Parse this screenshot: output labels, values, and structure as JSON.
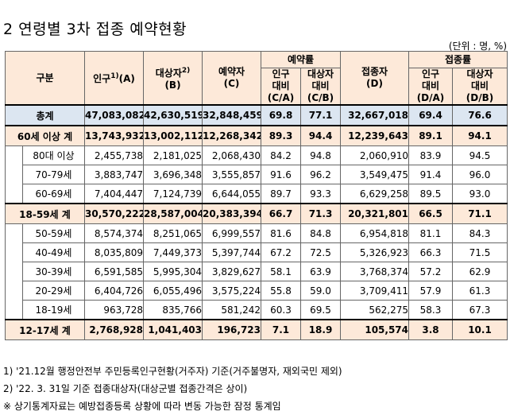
{
  "title": "2  연령별 3차 접종 예약현황",
  "unit": "(단위 : 명, %)",
  "headers": {
    "category": "구분",
    "population": "인구",
    "population_sup": "1)",
    "population_suffix": "(A)",
    "target": "대상자",
    "target_sup": "2)",
    "target_suffix": "(B)",
    "reserved": "예약자",
    "reserved_suffix": "(C)",
    "reservation_rate": "예약률",
    "vs_pop_line1": "인구",
    "vs_pop_line2": "대비",
    "vs_pop_ca": "(C/A)",
    "vs_target_line1": "대상자",
    "vs_target_line2": "대비",
    "vs_target_cb": "(C/B)",
    "vaccinated": "접종자",
    "vaccinated_suffix": "(D)",
    "vaccination_rate": "접종률",
    "vs_pop_da": "(D/A)",
    "vs_target_db": "(D/B)"
  },
  "rows": [
    {
      "label": "총계",
      "a": "47,083,082",
      "b": "42,630,519",
      "c": "32,848,459",
      "ca": "69.8",
      "cb": "77.1",
      "d": "32,667,018",
      "da": "69.4",
      "db": "76.6"
    },
    {
      "label": "60세 이상 계",
      "a": "13,743,932",
      "b": "13,002,112",
      "c": "12,268,342",
      "ca": "89.3",
      "cb": "94.4",
      "d": "12,239,643",
      "da": "89.1",
      "db": "94.1"
    },
    {
      "label": "80대 이상",
      "a": "2,455,738",
      "b": "2,181,025",
      "c": "2,068,430",
      "ca": "84.2",
      "cb": "94.8",
      "d": "2,060,910",
      "da": "83.9",
      "db": "94.5"
    },
    {
      "label": "70-79세",
      "a": "3,883,747",
      "b": "3,696,348",
      "c": "3,555,857",
      "ca": "91.6",
      "cb": "96.2",
      "d": "3,549,475",
      "da": "91.4",
      "db": "96.0"
    },
    {
      "label": "60-69세",
      "a": "7,404,447",
      "b": "7,124,739",
      "c": "6,644,055",
      "ca": "89.7",
      "cb": "93.3",
      "d": "6,629,258",
      "da": "89.5",
      "db": "93.0"
    },
    {
      "label": "18-59세 계",
      "a": "30,570,222",
      "b": "28,587,004",
      "c": "20,383,394",
      "ca": "66.7",
      "cb": "71.3",
      "d": "20,321,801",
      "da": "66.5",
      "db": "71.1"
    },
    {
      "label": "50-59세",
      "a": "8,574,374",
      "b": "8,251,065",
      "c": "6,999,557",
      "ca": "81.6",
      "cb": "84.8",
      "d": "6,954,818",
      "da": "81.1",
      "db": "84.3"
    },
    {
      "label": "40-49세",
      "a": "8,035,809",
      "b": "7,449,373",
      "c": "5,397,744",
      "ca": "67.2",
      "cb": "72.5",
      "d": "5,326,923",
      "da": "66.3",
      "db": "71.5"
    },
    {
      "label": "30-39세",
      "a": "6,591,585",
      "b": "5,995,304",
      "c": "3,829,627",
      "ca": "58.1",
      "cb": "63.9",
      "d": "3,768,374",
      "da": "57.2",
      "db": "62.9"
    },
    {
      "label": "20-29세",
      "a": "6,404,726",
      "b": "6,055,496",
      "c": "3,575,224",
      "ca": "55.8",
      "cb": "59.0",
      "d": "3,709,411",
      "da": "57.9",
      "db": "61.3"
    },
    {
      "label": "18-19세",
      "a": "963,728",
      "b": "835,766",
      "c": "581,242",
      "ca": "60.3",
      "cb": "69.5",
      "d": "562,275",
      "da": "58.3",
      "db": "67.3"
    },
    {
      "label": "12-17세 계",
      "a": "2,768,928",
      "b": "1,041,403",
      "c": "196,723",
      "ca": "7.1",
      "cb": "18.9",
      "d": "105,574",
      "da": "3.8",
      "db": "10.1"
    }
  ],
  "notes": [
    "1) '21.12월 행정안전부 주민등록인구현황(거주자) 기준(거주불명자, 재외국민 제외)",
    "2) '22. 3. 31일 기준 접종대상자(대상군별 접종간격은 상이)",
    "※ 상기통계자료는 예방접종등록 상황에 따라 변동 가능한 잠정 통계임"
  ]
}
